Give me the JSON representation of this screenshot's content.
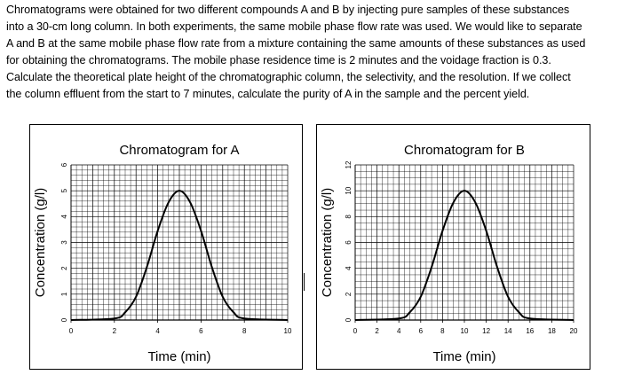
{
  "problem": {
    "lines": [
      "Chromatograms were obtained for two different compounds A and B by injecting pure samples of these substances",
      "into a 30-cm long column. In both experiments, the same mobile phase flow rate was used. We would like to separate",
      "A and B at the same mobile phase flow rate from a mixture containing the same amounts of these substances as used",
      "for obtaining the chromatograms. The mobile phase residence time is 2 minutes and the voidage fraction is 0.3.",
      "Calculate the theoretical plate height of the chromatographic column, the selectivity, and the resolution. If we collect",
      "the column effluent from the start to 7 minutes, calculate the purity of A in the sample and the percent yield."
    ]
  },
  "chart_data": [
    {
      "type": "line",
      "title": "Chromatogram for A",
      "xlabel": "Time (min)",
      "ylabel": "Concentration (g/l)",
      "xlim": [
        0,
        10
      ],
      "ylim": [
        0,
        6
      ],
      "xticks": [
        "0",
        "2",
        "4",
        "6",
        "8",
        "10"
      ],
      "yticks": [
        "0",
        "1",
        "2",
        "3",
        "4",
        "5",
        "6"
      ],
      "grid": true,
      "series": [
        {
          "name": "A",
          "x": [
            0,
            2.0,
            2.5,
            3.0,
            3.5,
            4.0,
            4.5,
            5.0,
            5.5,
            6.0,
            6.5,
            7.0,
            7.5,
            8.0,
            10
          ],
          "y": [
            0,
            0.06,
            0.3,
            0.9,
            2.05,
            3.45,
            4.55,
            5.0,
            4.55,
            3.45,
            2.05,
            0.9,
            0.3,
            0.06,
            0
          ]
        }
      ]
    },
    {
      "type": "line",
      "title": "Chromatogram for B",
      "xlabel": "Time (min)",
      "ylabel": "Concentration (g/l)",
      "xlim": [
        0,
        20
      ],
      "ylim": [
        0,
        12
      ],
      "xticks": [
        "0",
        "2",
        "4",
        "6",
        "8",
        "10",
        "12",
        "14",
        "16",
        "18",
        "20"
      ],
      "yticks": [
        "0",
        "2",
        "4",
        "6",
        "8",
        "10",
        "12"
      ],
      "grid": true,
      "series": [
        {
          "name": "B",
          "x": [
            0,
            4.0,
            5.0,
            6.0,
            7.0,
            8.0,
            9.0,
            10.0,
            11.0,
            12.0,
            13.0,
            14.0,
            15.0,
            16.0,
            20
          ],
          "y": [
            0,
            0.12,
            0.6,
            1.8,
            4.1,
            6.9,
            9.1,
            10.0,
            9.1,
            6.9,
            4.1,
            1.8,
            0.6,
            0.12,
            0
          ]
        }
      ]
    }
  ]
}
